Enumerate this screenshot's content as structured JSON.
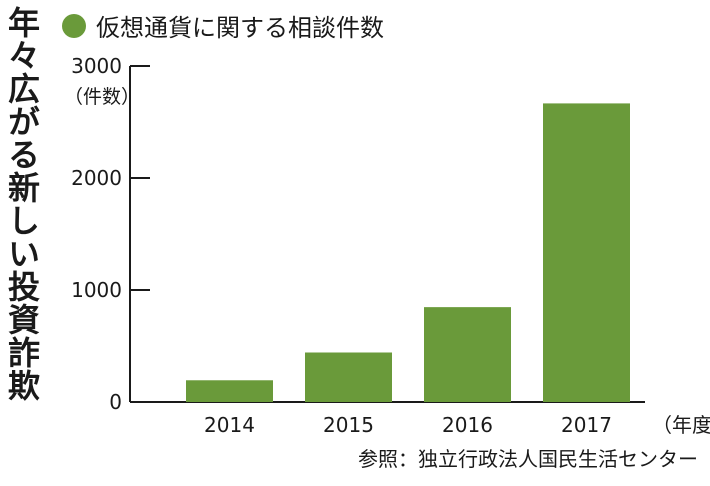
{
  "title_vertical": "年々広がる新しい投資詐欺",
  "legend": {
    "label": "仮想通貨に関する相談件数",
    "color": "#6a9a3a"
  },
  "unit_label": "（件数）",
  "source": "参照：独立行政法人国民生活センター",
  "chart_data": {
    "type": "bar",
    "categories": [
      "2014",
      "2015",
      "2016",
      "2017"
    ],
    "values": [
      194,
      442,
      847,
      2666
    ],
    "x_unit_label": "（年度）",
    "ylim": [
      0,
      3000
    ],
    "yticks": [
      0,
      1000,
      2000,
      3000
    ],
    "bar_color": "#6a9a3a",
    "grid": false,
    "legend_position": "top-left"
  }
}
